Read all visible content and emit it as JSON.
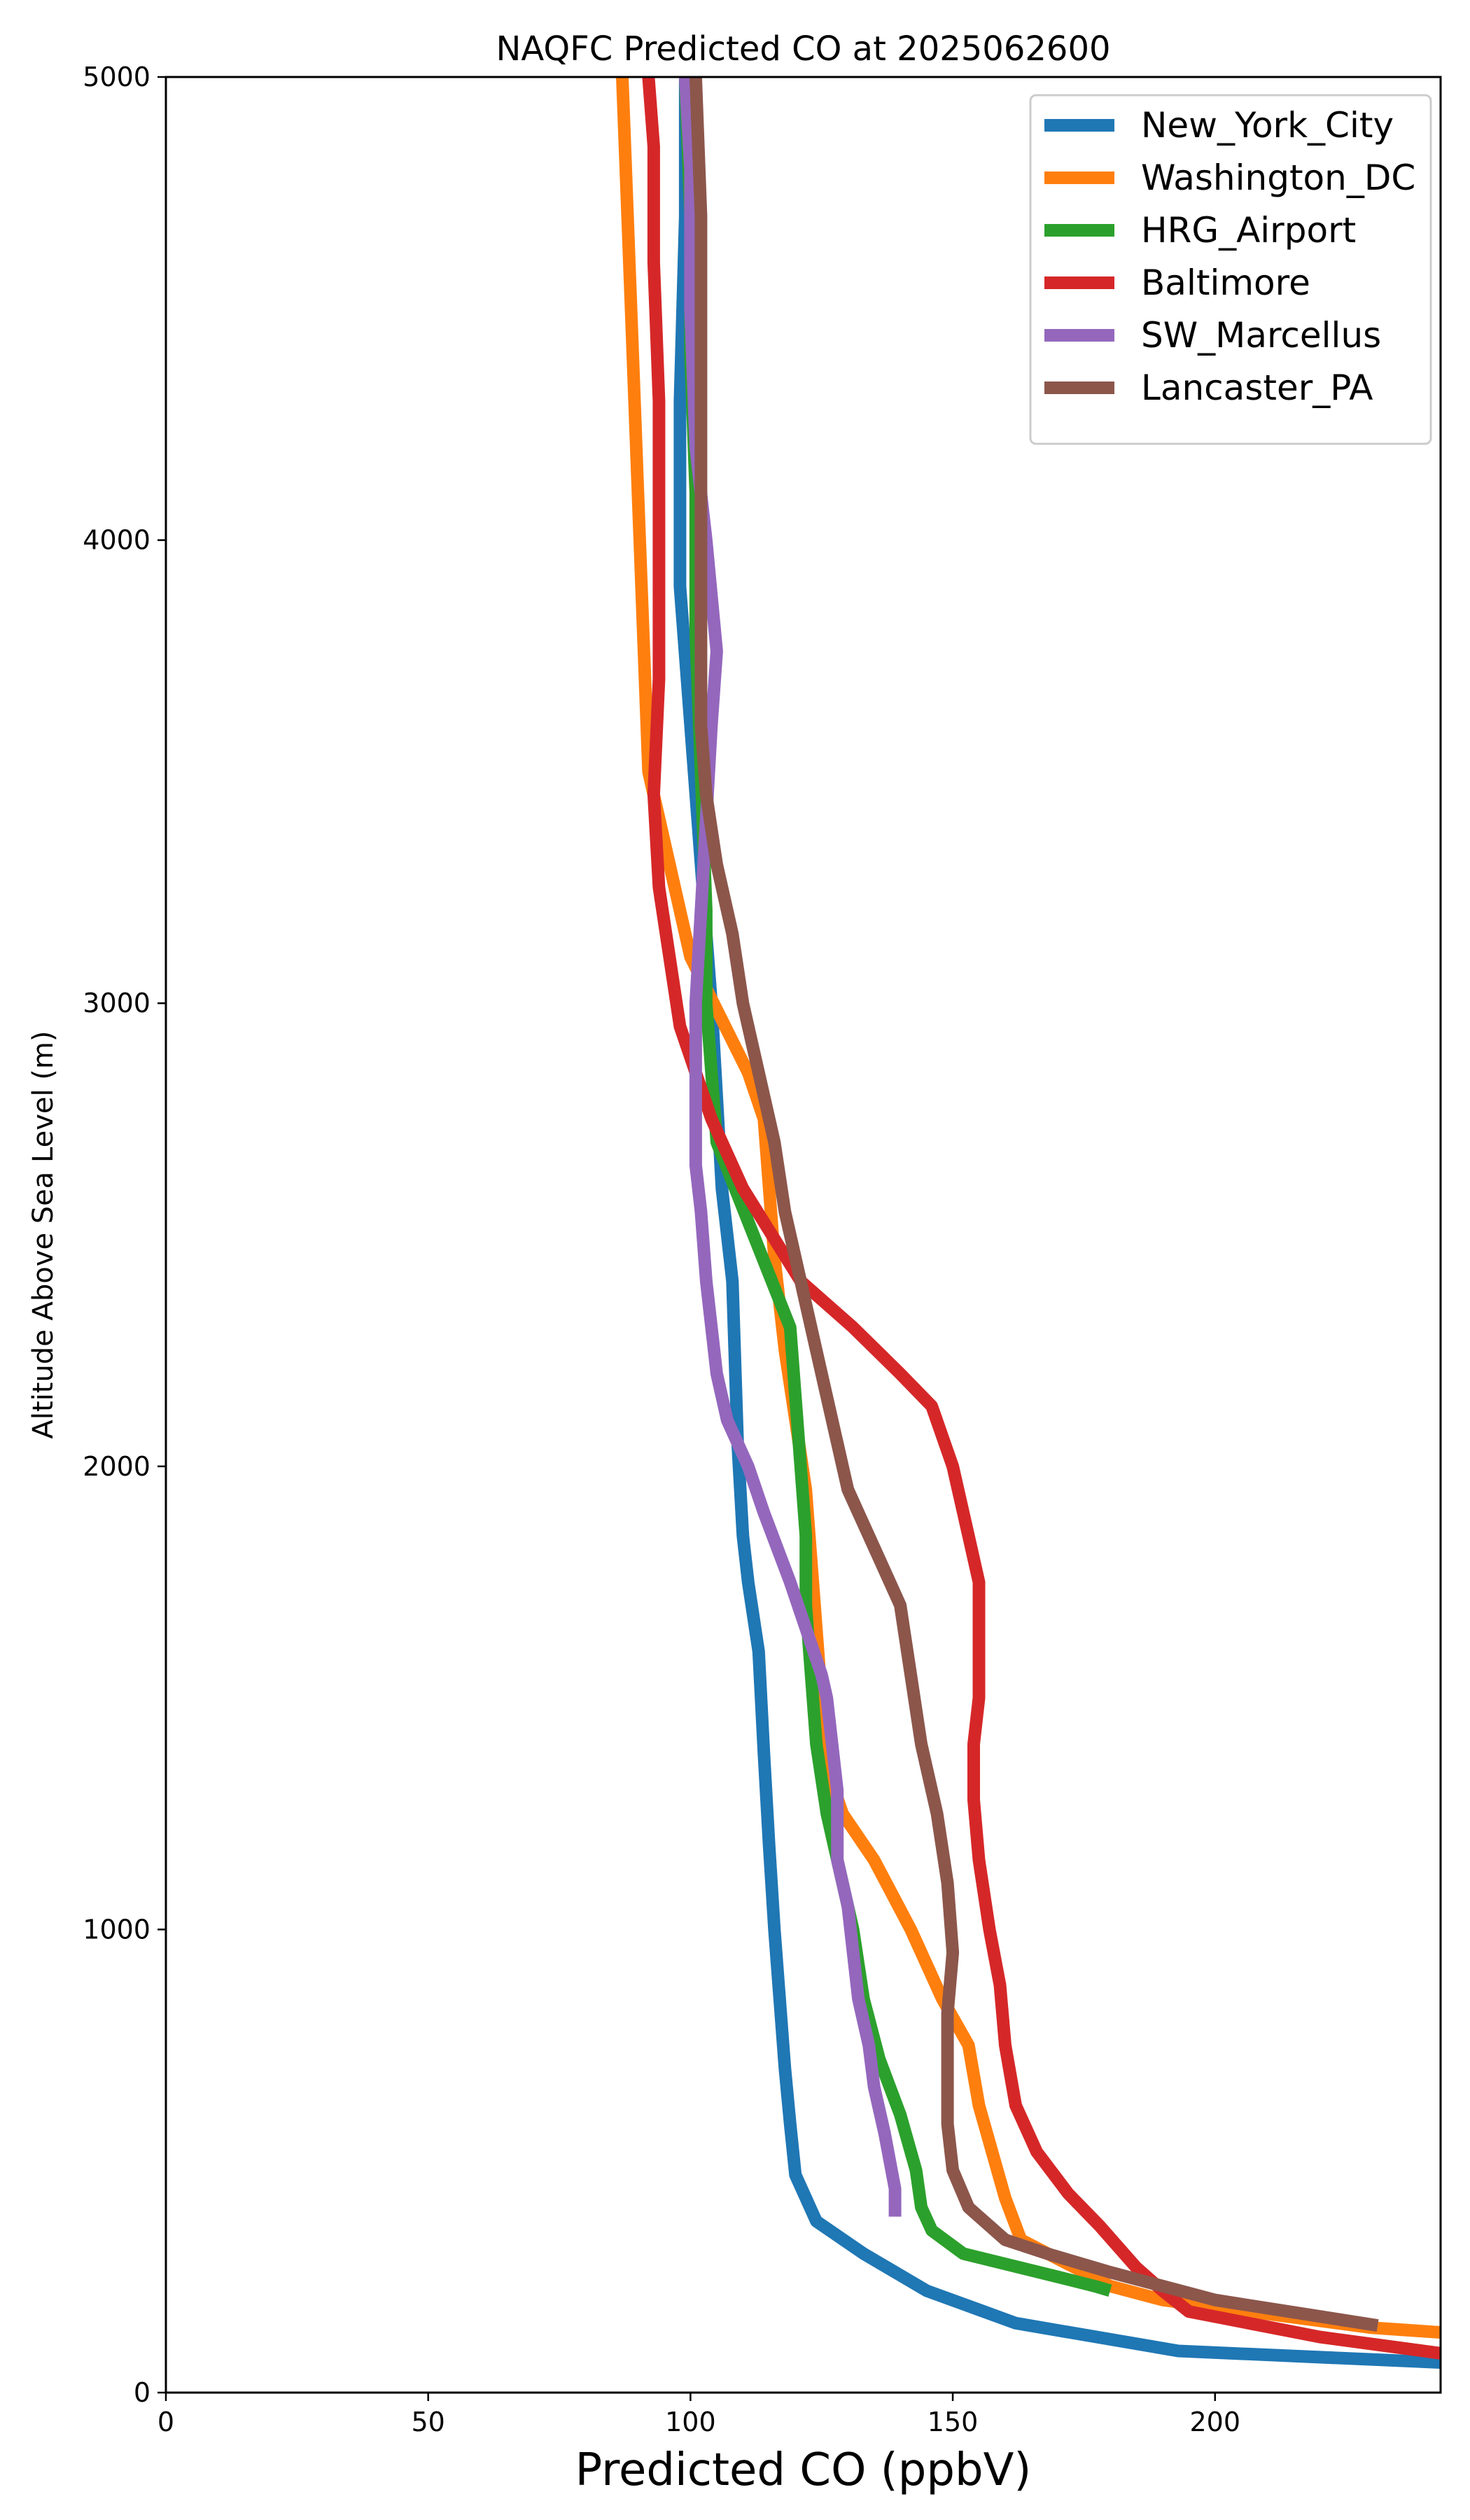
{
  "chart_data": {
    "type": "line",
    "title": "NAQFC Predicted CO at 2025062600",
    "xlabel": "Predicted CO (ppbV)",
    "ylabel": "Altitude Above Sea Level (m)",
    "xlim": [
      0,
      243
    ],
    "ylim": [
      0,
      5000
    ],
    "xticks": [
      0,
      50,
      100,
      150,
      200
    ],
    "yticks": [
      0,
      1000,
      2000,
      3000,
      4000,
      5000
    ],
    "grid": false,
    "legend_position": "top-right",
    "series": [
      {
        "name": "New_York_City",
        "color": "#1f77b4",
        "points": [
          [
            243,
            65
          ],
          [
            193,
            90
          ],
          [
            162,
            150
          ],
          [
            145,
            220
          ],
          [
            133,
            300
          ],
          [
            124,
            370
          ],
          [
            120,
            470
          ],
          [
            119,
            580
          ],
          [
            118,
            700
          ],
          [
            117,
            850
          ],
          [
            116,
            1000
          ],
          [
            115,
            1180
          ],
          [
            114,
            1380
          ],
          [
            113,
            1600
          ],
          [
            111,
            1750
          ],
          [
            110,
            1850
          ],
          [
            109,
            2050
          ],
          [
            108,
            2400
          ],
          [
            106,
            2600
          ],
          [
            105,
            2800
          ],
          [
            104,
            3000
          ],
          [
            102,
            3300
          ],
          [
            100,
            3600
          ],
          [
            98,
            3900
          ],
          [
            98,
            4300
          ],
          [
            99,
            4700
          ],
          [
            99,
            5000
          ]
        ]
      },
      {
        "name": "Washington_DC",
        "color": "#ff7f0e",
        "points": [
          [
            243,
            130
          ],
          [
            230,
            140
          ],
          [
            190,
            200
          ],
          [
            180,
            230
          ],
          [
            175,
            260
          ],
          [
            163,
            330
          ],
          [
            160,
            420
          ],
          [
            158,
            500
          ],
          [
            155,
            620
          ],
          [
            153,
            750
          ],
          [
            148,
            850
          ],
          [
            142,
            1000
          ],
          [
            135,
            1150
          ],
          [
            129,
            1250
          ],
          [
            126,
            1350
          ],
          [
            125,
            1420
          ],
          [
            125,
            1500
          ],
          [
            124,
            1650
          ],
          [
            123,
            1800
          ],
          [
            122,
            1950
          ],
          [
            120,
            2100
          ],
          [
            118,
            2250
          ],
          [
            116,
            2450
          ],
          [
            115,
            2600
          ],
          [
            114,
            2750
          ],
          [
            111,
            2850
          ],
          [
            100,
            3100
          ],
          [
            92,
            3500
          ],
          [
            91,
            3800
          ],
          [
            90,
            4100
          ],
          [
            89,
            4400
          ],
          [
            88,
            4700
          ],
          [
            87,
            5000
          ]
        ]
      },
      {
        "name": "HRG_Airport",
        "color": "#2ca02c",
        "points": [
          [
            180,
            220
          ],
          [
            177,
            230
          ],
          [
            170,
            250
          ],
          [
            152,
            300
          ],
          [
            146,
            350
          ],
          [
            144,
            400
          ],
          [
            143,
            480
          ],
          [
            140,
            600
          ],
          [
            136,
            720
          ],
          [
            133,
            850
          ],
          [
            131,
            1000
          ],
          [
            128,
            1150
          ],
          [
            126,
            1250
          ],
          [
            124,
            1400
          ],
          [
            123,
            1550
          ],
          [
            122,
            1700
          ],
          [
            122,
            1850
          ],
          [
            121,
            2000
          ],
          [
            119,
            2300
          ],
          [
            112,
            2500
          ],
          [
            105,
            2700
          ],
          [
            104,
            2850
          ],
          [
            103,
            3000
          ],
          [
            103,
            3200
          ],
          [
            102,
            3500
          ],
          [
            101,
            3800
          ],
          [
            101,
            4100
          ],
          [
            100,
            4400
          ],
          [
            100,
            4700
          ],
          [
            99,
            5000
          ]
        ]
      },
      {
        "name": "Baltimore",
        "color": "#d62728",
        "points": [
          [
            243,
            85
          ],
          [
            220,
            120
          ],
          [
            195,
            175
          ],
          [
            190,
            220
          ],
          [
            185,
            270
          ],
          [
            178,
            360
          ],
          [
            172,
            430
          ],
          [
            166,
            520
          ],
          [
            162,
            620
          ],
          [
            160,
            750
          ],
          [
            159,
            880
          ],
          [
            157,
            1000
          ],
          [
            155,
            1150
          ],
          [
            154,
            1280
          ],
          [
            154,
            1400
          ],
          [
            155,
            1500
          ],
          [
            155,
            1620
          ],
          [
            155,
            1750
          ],
          [
            153,
            1850
          ],
          [
            150,
            2000
          ],
          [
            146,
            2130
          ],
          [
            140,
            2200
          ],
          [
            131,
            2300
          ],
          [
            121,
            2400
          ],
          [
            110,
            2600
          ],
          [
            104,
            2750
          ],
          [
            98,
            2950
          ],
          [
            96,
            3100
          ],
          [
            94,
            3250
          ],
          [
            93,
            3450
          ],
          [
            94,
            3700
          ],
          [
            94,
            4000
          ],
          [
            94,
            4300
          ],
          [
            93,
            4600
          ],
          [
            93,
            4850
          ],
          [
            92,
            5000
          ]
        ]
      },
      {
        "name": "SW_Marcellus",
        "color": "#9467bd",
        "points": [
          [
            139,
            380
          ],
          [
            139,
            440
          ],
          [
            137,
            560
          ],
          [
            135,
            660
          ],
          [
            134,
            750
          ],
          [
            132,
            850
          ],
          [
            131,
            950
          ],
          [
            130,
            1050
          ],
          [
            128,
            1150
          ],
          [
            128,
            1300
          ],
          [
            127,
            1400
          ],
          [
            126,
            1500
          ],
          [
            125,
            1550
          ],
          [
            122,
            1650
          ],
          [
            119,
            1750
          ],
          [
            114,
            1900
          ],
          [
            111,
            2000
          ],
          [
            107,
            2100
          ],
          [
            105,
            2200
          ],
          [
            103,
            2400
          ],
          [
            102,
            2550
          ],
          [
            101,
            2650
          ],
          [
            101,
            2800
          ],
          [
            101,
            3000
          ],
          [
            102,
            3200
          ],
          [
            103,
            3400
          ],
          [
            104,
            3600
          ],
          [
            105,
            3760
          ],
          [
            103,
            4000
          ],
          [
            101,
            4200
          ],
          [
            100,
            4500
          ],
          [
            100,
            4800
          ],
          [
            99,
            5000
          ]
        ]
      },
      {
        "name": "Lancaster_PA",
        "color": "#8c564b",
        "points": [
          [
            231,
            145
          ],
          [
            200,
            200
          ],
          [
            180,
            260
          ],
          [
            168,
            300
          ],
          [
            160,
            330
          ],
          [
            153,
            400
          ],
          [
            150,
            480
          ],
          [
            149,
            580
          ],
          [
            149,
            700
          ],
          [
            149,
            820
          ],
          [
            150,
            950
          ],
          [
            149,
            1100
          ],
          [
            147,
            1250
          ],
          [
            144,
            1400
          ],
          [
            142,
            1550
          ],
          [
            140,
            1700
          ],
          [
            136,
            1800
          ],
          [
            132,
            1900
          ],
          [
            130,
            1950
          ],
          [
            128,
            2050
          ],
          [
            126,
            2150
          ],
          [
            124,
            2250
          ],
          [
            121,
            2400
          ],
          [
            118,
            2550
          ],
          [
            116,
            2700
          ],
          [
            113,
            2850
          ],
          [
            110,
            3000
          ],
          [
            108,
            3150
          ],
          [
            105,
            3300
          ],
          [
            103,
            3450
          ],
          [
            102,
            3600
          ],
          [
            102,
            3800
          ],
          [
            102,
            4000
          ],
          [
            102,
            4300
          ],
          [
            102,
            4700
          ],
          [
            101,
            5000
          ]
        ]
      }
    ]
  }
}
